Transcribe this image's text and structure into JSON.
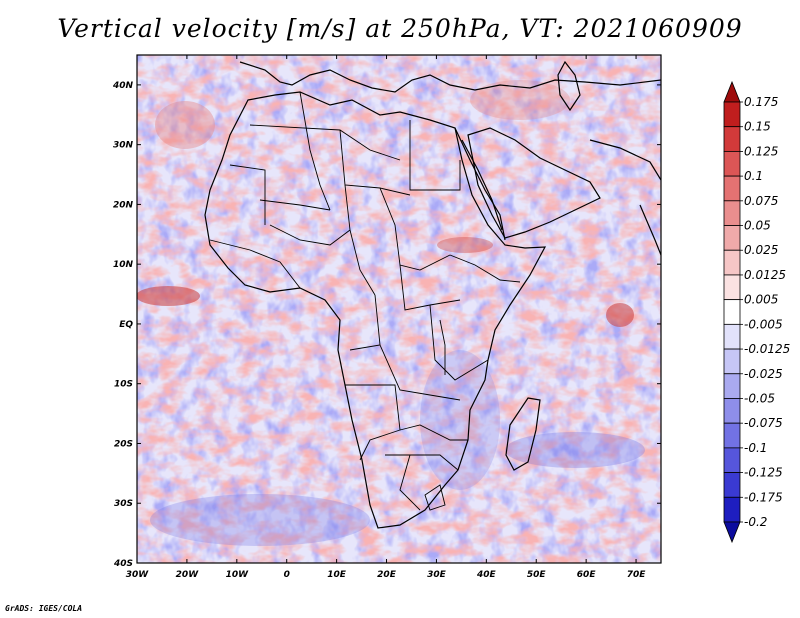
{
  "title": "Vertical velocity [m/s] at 250hPa, VT: 2021060909",
  "footer": "GrADS: IGES/COLA",
  "map": {
    "lon_labels": [
      "30W",
      "20W",
      "10W",
      "0",
      "10E",
      "20E",
      "30E",
      "40E",
      "50E",
      "60E",
      "70E"
    ],
    "lat_labels": [
      "40N",
      "30N",
      "20N",
      "10N",
      "EQ",
      "10S",
      "20S",
      "30S",
      "40S"
    ],
    "lon_range": [
      -30,
      75
    ],
    "lat_range": [
      -40,
      45
    ]
  },
  "colorbar": {
    "labels": [
      "0.175",
      "0.15",
      "0.125",
      "0.1",
      "0.075",
      "0.05",
      "0.025",
      "0.0125",
      "0.005",
      "-0.005",
      "-0.0125",
      "-0.025",
      "-0.05",
      "-0.075",
      "-0.1",
      "-0.125",
      "-0.175",
      "-0.2"
    ],
    "colors": [
      "#9e0c0c",
      "#c01e1e",
      "#d23a3a",
      "#dc5656",
      "#e47272",
      "#ea8e8e",
      "#f0aaaa",
      "#f6c6c6",
      "#fbe2e2",
      "#ffffff",
      "#e2e2fb",
      "#c6c6f6",
      "#aaaaf0",
      "#8e8eea",
      "#7272e4",
      "#5656dc",
      "#3a3ad2",
      "#1e1ec0",
      "#0c0c9e"
    ]
  }
}
